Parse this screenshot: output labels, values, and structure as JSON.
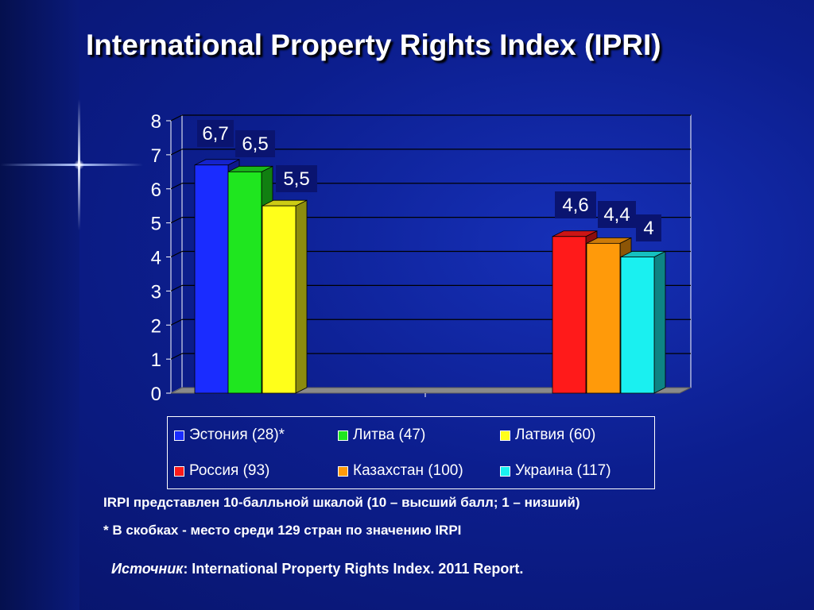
{
  "title": "International Property Rights Index (IPRI)",
  "chart_data": {
    "type": "bar",
    "categories": [
      "Эстония (28)*",
      "Литва (47)",
      "Латвия (60)",
      "Россия (93)",
      "Казахстан (100)",
      "Украина (117)"
    ],
    "values": [
      6.7,
      6.5,
      5.5,
      4.6,
      4.4,
      4.0
    ],
    "value_labels": [
      "6,7",
      "6,5",
      "5,5",
      "4,6",
      "4,4",
      "4"
    ],
    "colors": [
      "#1a2cff",
      "#1fe61f",
      "#ffff1a",
      "#ff1a1a",
      "#ff9a0a",
      "#1af0f0"
    ],
    "ylim": [
      0,
      8
    ],
    "yticks": [
      "0",
      "1",
      "2",
      "3",
      "4",
      "5",
      "6",
      "7",
      "8"
    ],
    "grid": true,
    "legend": "bottom"
  },
  "notes": {
    "scale": "IRPI представлен 10-балльной шкалой (10 – высший балл; 1 – низший)",
    "rank": "* В скобках - место среди 129 стран по значению IRPI"
  },
  "source": {
    "label": "Источник",
    "text": ": International Property Rights Index. 2011 Report."
  }
}
